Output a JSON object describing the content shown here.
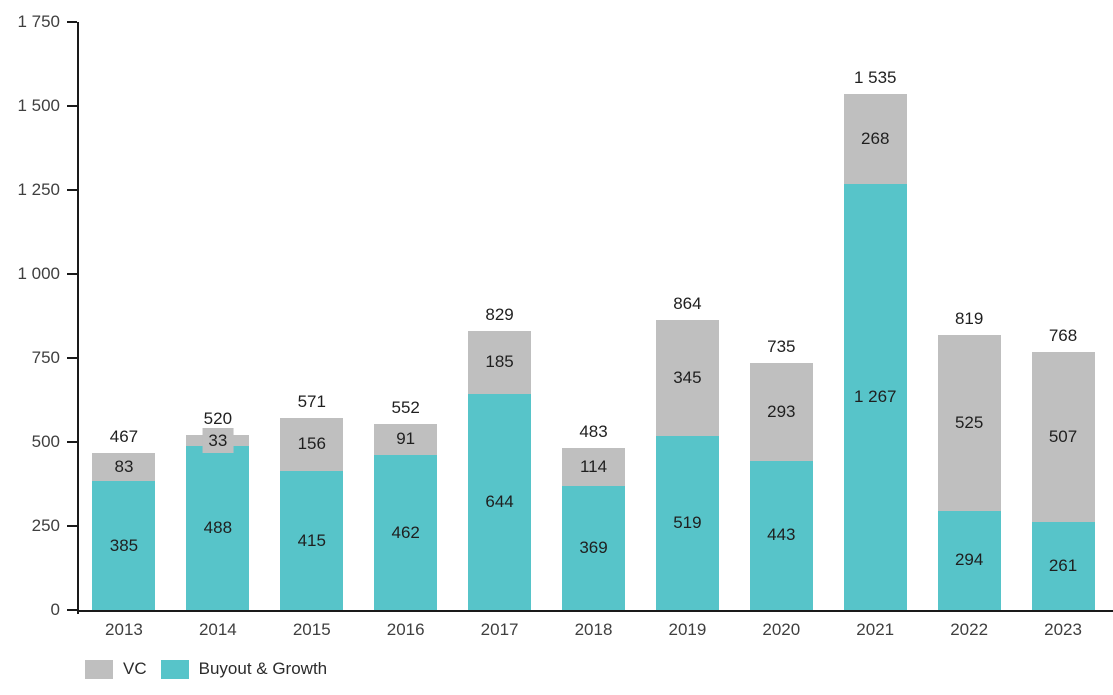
{
  "chart": {
    "background_color": "#FFFFFF",
    "axis_color": "#1A1A1A",
    "data_label_color": "#1F1F1F",
    "axis_label_color": "#3F3F3F"
  },
  "chart_data": {
    "type": "bar",
    "stacked": true,
    "title": "",
    "xlabel": "",
    "ylabel": "",
    "grid": false,
    "categories": [
      "2013",
      "2014",
      "2015",
      "2016",
      "2017",
      "2018",
      "2019",
      "2020",
      "2021",
      "2022",
      "2023"
    ],
    "series": [
      {
        "name": "Buyout & Growth",
        "color": "#57C4C9",
        "values": [
          385,
          488,
          415,
          462,
          644,
          369,
          519,
          443,
          1267,
          294,
          261
        ],
        "value_labels": [
          "385",
          "488",
          "415",
          "462",
          "644",
          "369",
          "519",
          "443",
          "1 267",
          "294",
          "261"
        ]
      },
      {
        "name": "VC",
        "color": "#BFBFBF",
        "values": [
          83,
          33,
          156,
          91,
          185,
          114,
          345,
          293,
          268,
          525,
          507
        ],
        "value_labels": [
          "83",
          "33",
          "156",
          "91",
          "185",
          "114",
          "345",
          "293",
          "268",
          "525",
          "507"
        ]
      }
    ],
    "totals": [
      467,
      520,
      571,
      552,
      829,
      483,
      864,
      735,
      1535,
      819,
      768
    ],
    "total_labels": [
      "467",
      "520",
      "571",
      "552",
      "829",
      "483",
      "864",
      "735",
      "1 535",
      "819",
      "768"
    ],
    "ylim": [
      0,
      1750
    ],
    "ytick_step": 250,
    "ytick_labels": [
      "0",
      "250",
      "500",
      "750",
      "1 000",
      "1 250",
      "1 500",
      "1 750"
    ],
    "legend_position": "bottom-left",
    "legend": [
      {
        "label": "VC",
        "color": "#BFBFBF"
      },
      {
        "label": "Buyout & Growth",
        "color": "#57C4C9"
      }
    ]
  }
}
